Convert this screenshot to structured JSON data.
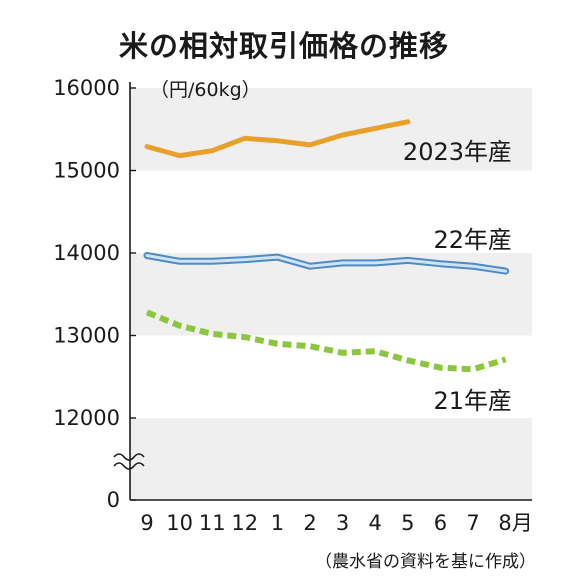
{
  "chart_data": {
    "type": "line",
    "title": "米の相対取引価格の推移",
    "unit_label": "（円/60kg）",
    "source": "（農水省の資料を基に作成）",
    "categories": [
      "9",
      "10",
      "11",
      "12",
      "1",
      "2",
      "3",
      "4",
      "5",
      "6",
      "7",
      "8月"
    ],
    "y_ticks": [
      "16000",
      "15000",
      "14000",
      "13000",
      "12000",
      "0"
    ],
    "y_axis_break": true,
    "ylim": [
      12000,
      16000
    ],
    "grid": false,
    "series": [
      {
        "name": "2023年産",
        "color": "#e8a02a",
        "style": "solid",
        "values": [
          15290,
          15180,
          15240,
          15390,
          15360,
          15310,
          15430,
          15510,
          15590,
          null,
          null,
          null
        ]
      },
      {
        "name": "22年産",
        "color": "#4e8bc4",
        "style": "double-solid",
        "values": [
          13970,
          13900,
          13900,
          13920,
          13950,
          13840,
          13880,
          13880,
          13910,
          13870,
          13840,
          13780
        ]
      },
      {
        "name": "21年産",
        "color": "#8cc63f",
        "style": "dashed",
        "values": [
          13280,
          13120,
          13020,
          12980,
          12900,
          12870,
          12790,
          12810,
          12700,
          12610,
          12590,
          12710
        ]
      }
    ]
  }
}
